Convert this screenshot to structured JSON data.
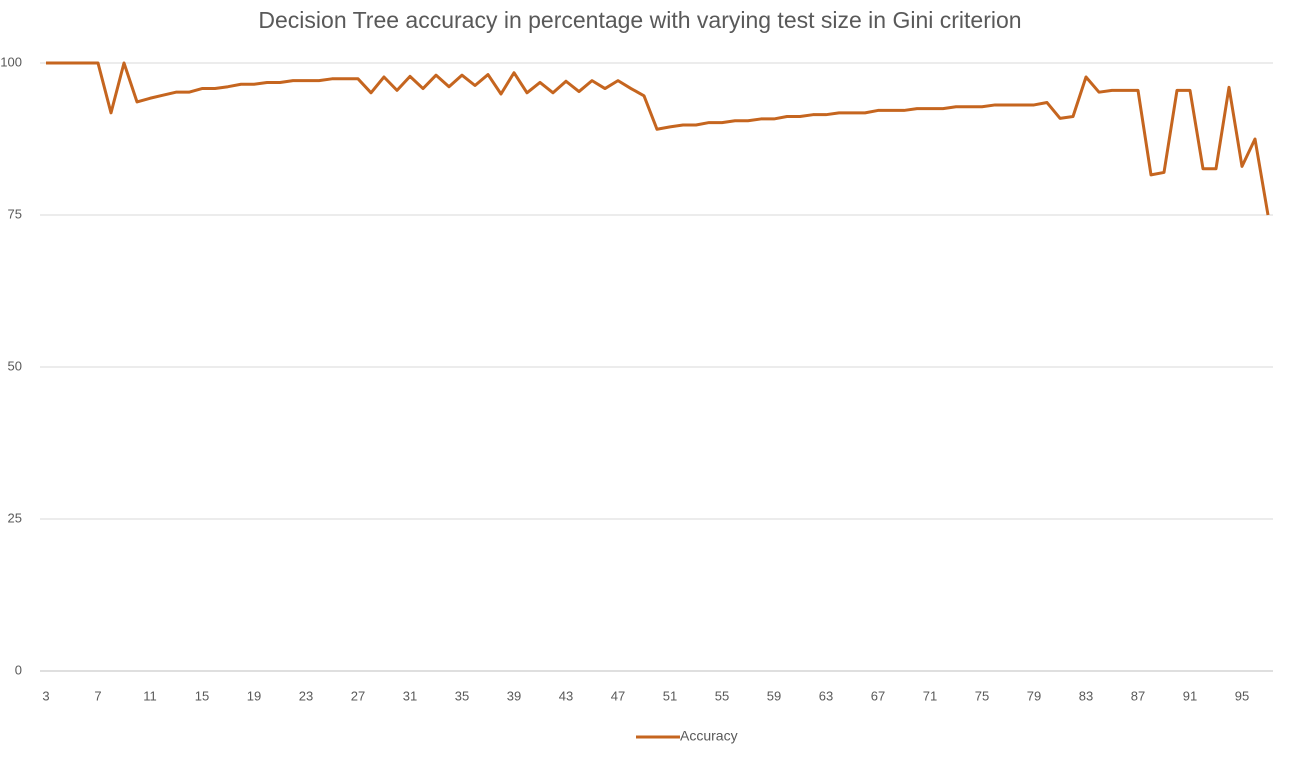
{
  "chart_data": {
    "type": "line",
    "title": "Decision Tree accuracy in percentage with varying test size in Gini criterion",
    "categories": [
      "3",
      null,
      null,
      null,
      "7",
      null,
      null,
      null,
      "11",
      null,
      null,
      null,
      "15",
      null,
      null,
      null,
      "19",
      null,
      null,
      null,
      "23",
      null,
      null,
      null,
      "27",
      null,
      null,
      null,
      "31",
      null,
      null,
      null,
      "35",
      null,
      null,
      null,
      "39",
      null,
      null,
      null,
      "43",
      null,
      null,
      null,
      "47",
      null,
      null,
      null,
      "51",
      null,
      null,
      null,
      "55",
      null,
      null,
      null,
      "59",
      null,
      null,
      null,
      "63",
      null,
      null,
      null,
      "67",
      null,
      null,
      null,
      "71",
      null,
      null,
      null,
      "75",
      null,
      null,
      null,
      "79",
      null,
      null,
      null,
      "83",
      null,
      null,
      null,
      "87",
      null,
      null,
      null,
      "91",
      null,
      null,
      null,
      "95",
      null,
      null
    ],
    "series": [
      {
        "name": "Accuracy",
        "color": "#c5651f",
        "values": [
          100,
          100,
          100,
          100,
          100,
          91.8,
          100,
          93.6,
          94.2,
          94.7,
          95.2,
          95.2,
          95.8,
          95.8,
          96.1,
          96.5,
          96.5,
          96.8,
          96.8,
          97.1,
          97.1,
          97.1,
          97.4,
          97.4,
          97.4,
          95.1,
          97.7,
          95.5,
          97.8,
          95.8,
          98.0,
          96.1,
          98.0,
          96.3,
          98.1,
          94.9,
          98.4,
          95.1,
          96.8,
          95.1,
          97.0,
          95.3,
          97.1,
          95.8,
          97.1,
          95.8,
          94.6,
          89.1,
          89.5,
          89.8,
          89.8,
          90.2,
          90.2,
          90.5,
          90.5,
          90.8,
          90.8,
          91.2,
          91.2,
          91.5,
          91.5,
          91.8,
          91.8,
          91.8,
          92.2,
          92.2,
          92.2,
          92.5,
          92.5,
          92.5,
          92.8,
          92.8,
          92.8,
          93.1,
          93.1,
          93.1,
          93.1,
          93.5,
          90.9,
          91.2,
          97.7,
          95.2,
          95.5,
          95.5,
          95.5,
          81.6,
          82.0,
          95.5,
          95.5,
          82.6,
          82.6,
          96.0,
          83.0,
          87.5,
          75
        ]
      }
    ],
    "ylim": [
      0,
      100
    ],
    "yticks": [
      0,
      25,
      50,
      75,
      100
    ],
    "grid": true,
    "legend": "bottom"
  }
}
